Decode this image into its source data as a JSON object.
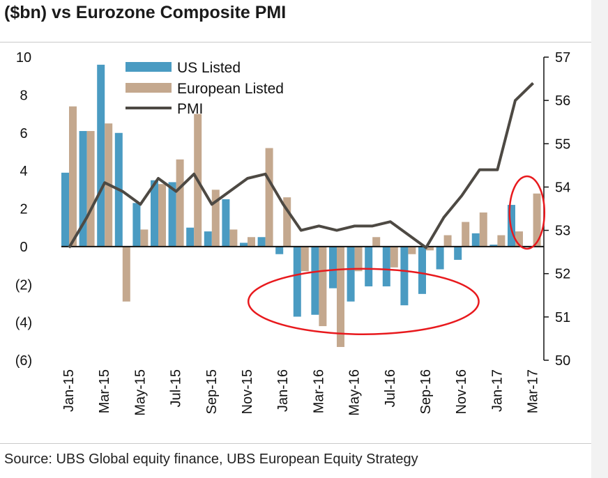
{
  "title": "($bn) vs Eurozone Composite PMI",
  "source": "Source:  UBS Global equity finance, UBS European Equity Strategy",
  "colors": {
    "us": "#4a9bc2",
    "eu": "#c4a88e",
    "pmi": "#4d4943",
    "highlight": "#e8191d",
    "axis": "#111111"
  },
  "chart_data": {
    "type": "bar",
    "categories": [
      "Jan-15",
      "Feb-15",
      "Mar-15",
      "Apr-15",
      "May-15",
      "Jun-15",
      "Jul-15",
      "Aug-15",
      "Sep-15",
      "Oct-15",
      "Nov-15",
      "Dec-15",
      "Jan-16",
      "Feb-16",
      "Mar-16",
      "Apr-16",
      "May-16",
      "Jun-16",
      "Jul-16",
      "Aug-16",
      "Sep-16",
      "Oct-16",
      "Nov-16",
      "Dec-16",
      "Jan-17",
      "Feb-17",
      "Mar-17"
    ],
    "x_tick_labels": [
      "Jan-15",
      "Mar-15",
      "May-15",
      "Jul-15",
      "Sep-15",
      "Nov-15",
      "Jan-16",
      "Mar-16",
      "May-16",
      "Jul-16",
      "Sep-16",
      "Nov-16",
      "Jan-17",
      "Mar-17"
    ],
    "series": [
      {
        "name": "US Listed",
        "axis": "left",
        "type": "bar",
        "values": [
          3.9,
          6.1,
          9.6,
          6.0,
          2.3,
          3.5,
          3.4,
          1.0,
          0.8,
          2.5,
          0.2,
          0.5,
          -0.4,
          -3.7,
          -3.6,
          -2.2,
          -2.9,
          -2.1,
          -2.1,
          -3.1,
          -2.5,
          -1.2,
          -0.7,
          0.7,
          0.1,
          2.2,
          0.0
        ]
      },
      {
        "name": "European Listed",
        "axis": "left",
        "type": "bar",
        "values": [
          7.4,
          6.1,
          6.5,
          -2.9,
          0.9,
          3.3,
          4.6,
          7.0,
          3.0,
          0.9,
          0.5,
          5.2,
          2.6,
          -1.3,
          -4.2,
          -5.3,
          -1.3,
          0.5,
          -1.1,
          -0.4,
          -0.2,
          0.6,
          1.3,
          1.8,
          0.6,
          0.8,
          2.8
        ]
      },
      {
        "name": "PMI",
        "axis": "right",
        "type": "line",
        "values": [
          52.6,
          53.3,
          54.1,
          53.9,
          53.6,
          54.2,
          53.9,
          54.3,
          53.6,
          53.9,
          54.2,
          54.3,
          53.6,
          53.0,
          53.1,
          53.0,
          53.1,
          53.1,
          53.2,
          52.9,
          52.6,
          53.3,
          53.8,
          54.4,
          54.4,
          56.0,
          56.4
        ]
      }
    ],
    "y_left": {
      "min": -6,
      "max": 10,
      "ticks": [
        10,
        8,
        6,
        4,
        2,
        0,
        -2,
        -4,
        -6
      ],
      "tick_labels": [
        "10",
        "8",
        "6",
        "4",
        "2",
        "0",
        "(2)",
        "(4)",
        "(6)"
      ]
    },
    "y_right": {
      "min": 50,
      "max": 57,
      "ticks": [
        57,
        56,
        55,
        54,
        53,
        52,
        51,
        50
      ],
      "tick_labels": [
        "57",
        "56",
        "55",
        "54",
        "53",
        "52",
        "51",
        "50"
      ]
    },
    "legend": {
      "position": "top-left",
      "entries": [
        "US Listed",
        "European Listed",
        "PMI"
      ]
    },
    "annotations": [
      {
        "type": "ellipse",
        "label": "negative-flows-2016",
        "around_categories": [
          "Jan-16",
          "Oct-16"
        ]
      },
      {
        "type": "ellipse",
        "label": "recent-rebound",
        "around_categories": [
          "Feb-17",
          "Mar-17"
        ]
      }
    ]
  }
}
